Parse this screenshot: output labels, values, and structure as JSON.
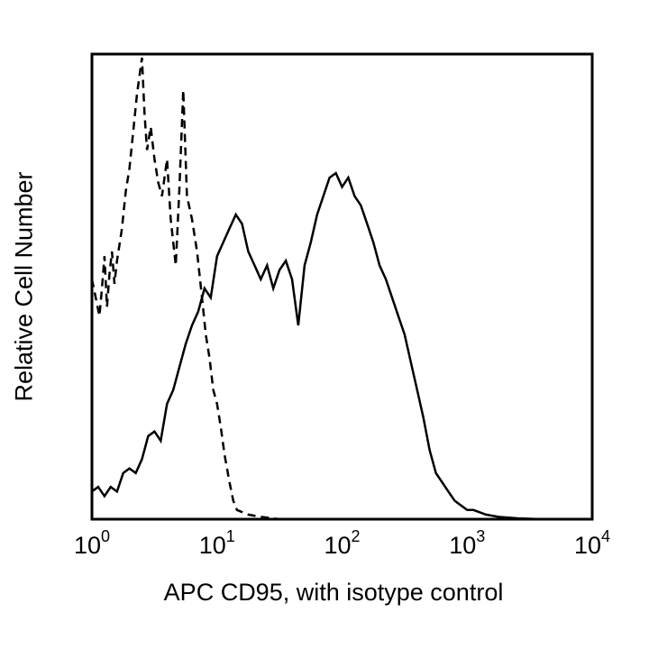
{
  "chart_data": {
    "type": "line",
    "title": "",
    "xlabel": "APC CD95, with isotype control",
    "ylabel": "Relative Cell Number",
    "xscale": "log",
    "xlim": [
      1,
      10000
    ],
    "ylim": [
      0,
      100
    ],
    "grid": false,
    "legend": null,
    "x_ticks": [
      {
        "base": "10",
        "exp": "0",
        "value": 1
      },
      {
        "base": "10",
        "exp": "1",
        "value": 10
      },
      {
        "base": "10",
        "exp": "2",
        "value": 100
      },
      {
        "base": "10",
        "exp": "3",
        "value": 1000
      },
      {
        "base": "10",
        "exp": "4",
        "value": 10000
      }
    ],
    "series": [
      {
        "name": "Isotype control",
        "style": "dashed",
        "points_log10x_y": [
          [
            0.0,
            52
          ],
          [
            0.03,
            48
          ],
          [
            0.06,
            44
          ],
          [
            0.08,
            50
          ],
          [
            0.1,
            57
          ],
          [
            0.12,
            46
          ],
          [
            0.14,
            53
          ],
          [
            0.16,
            58
          ],
          [
            0.18,
            51
          ],
          [
            0.2,
            56
          ],
          [
            0.24,
            63
          ],
          [
            0.27,
            71
          ],
          [
            0.3,
            76
          ],
          [
            0.33,
            84
          ],
          [
            0.36,
            92
          ],
          [
            0.4,
            100
          ],
          [
            0.42,
            88
          ],
          [
            0.44,
            80
          ],
          [
            0.47,
            85
          ],
          [
            0.5,
            78
          ],
          [
            0.53,
            73
          ],
          [
            0.56,
            70
          ],
          [
            0.6,
            78
          ],
          [
            0.63,
            65
          ],
          [
            0.67,
            55
          ],
          [
            0.7,
            72
          ],
          [
            0.73,
            93
          ],
          [
            0.76,
            70
          ],
          [
            0.8,
            65
          ],
          [
            0.84,
            58
          ],
          [
            0.88,
            48
          ],
          [
            0.91,
            40
          ],
          [
            0.94,
            35
          ],
          [
            0.97,
            28
          ],
          [
            1.0,
            25
          ],
          [
            1.03,
            20
          ],
          [
            1.06,
            14
          ],
          [
            1.1,
            8
          ],
          [
            1.13,
            4
          ],
          [
            1.16,
            2
          ],
          [
            1.25,
            1
          ],
          [
            1.35,
            0.5
          ],
          [
            1.5,
            0
          ],
          [
            2.0,
            0
          ],
          [
            3.0,
            0
          ],
          [
            4.0,
            0
          ]
        ]
      },
      {
        "name": "APC CD95",
        "style": "solid",
        "points_log10x_y": [
          [
            0.0,
            6
          ],
          [
            0.05,
            7
          ],
          [
            0.1,
            5
          ],
          [
            0.15,
            7
          ],
          [
            0.2,
            6
          ],
          [
            0.25,
            10
          ],
          [
            0.3,
            11
          ],
          [
            0.35,
            10
          ],
          [
            0.4,
            13
          ],
          [
            0.45,
            18
          ],
          [
            0.5,
            19
          ],
          [
            0.55,
            17
          ],
          [
            0.6,
            25
          ],
          [
            0.65,
            28
          ],
          [
            0.7,
            33
          ],
          [
            0.75,
            38
          ],
          [
            0.8,
            42
          ],
          [
            0.85,
            45
          ],
          [
            0.9,
            50
          ],
          [
            0.95,
            48
          ],
          [
            1.0,
            57
          ],
          [
            1.05,
            60
          ],
          [
            1.1,
            63
          ],
          [
            1.15,
            66
          ],
          [
            1.2,
            64
          ],
          [
            1.25,
            58
          ],
          [
            1.3,
            55
          ],
          [
            1.35,
            52
          ],
          [
            1.4,
            55
          ],
          [
            1.45,
            50
          ],
          [
            1.5,
            54
          ],
          [
            1.55,
            56
          ],
          [
            1.6,
            52
          ],
          [
            1.65,
            42
          ],
          [
            1.7,
            55
          ],
          [
            1.75,
            60
          ],
          [
            1.8,
            66
          ],
          [
            1.85,
            70
          ],
          [
            1.9,
            74
          ],
          [
            1.95,
            75
          ],
          [
            2.0,
            72
          ],
          [
            2.05,
            74
          ],
          [
            2.1,
            70
          ],
          [
            2.15,
            68
          ],
          [
            2.2,
            64
          ],
          [
            2.25,
            60
          ],
          [
            2.3,
            55
          ],
          [
            2.35,
            52
          ],
          [
            2.4,
            48
          ],
          [
            2.45,
            44
          ],
          [
            2.5,
            40
          ],
          [
            2.55,
            34
          ],
          [
            2.6,
            28
          ],
          [
            2.65,
            22
          ],
          [
            2.7,
            15
          ],
          [
            2.75,
            10
          ],
          [
            2.8,
            8
          ],
          [
            2.85,
            6
          ],
          [
            2.9,
            4
          ],
          [
            2.95,
            3
          ],
          [
            3.0,
            2
          ],
          [
            3.05,
            2
          ],
          [
            3.1,
            1.5
          ],
          [
            3.15,
            1
          ],
          [
            3.25,
            0.5
          ],
          [
            3.4,
            0.2
          ],
          [
            3.6,
            0
          ],
          [
            4.0,
            0
          ]
        ]
      }
    ]
  }
}
